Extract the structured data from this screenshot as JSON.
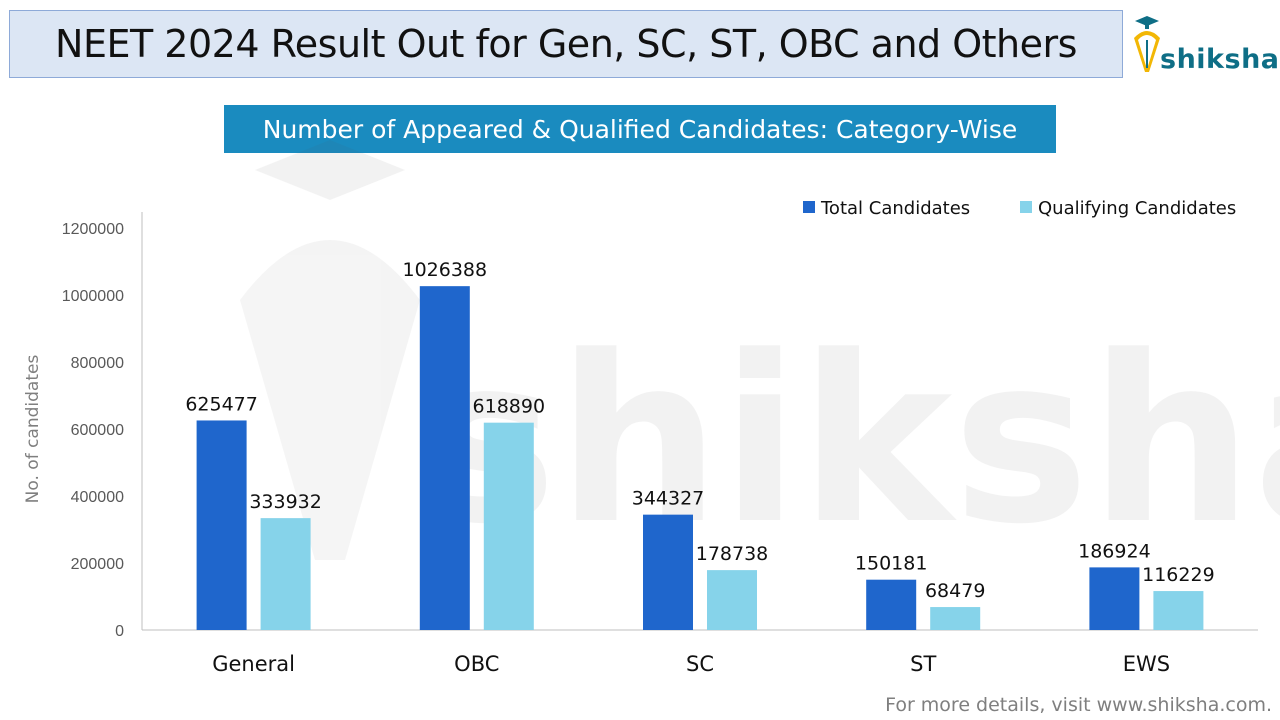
{
  "header": {
    "title": "NEET 2024 Result Out for Gen, SC, ST, OBC and Others",
    "logo_text": "shiksha",
    "watermark_text": "shiksha"
  },
  "subtitle": "Number of Appeared & Qualified Candidates: Category-Wise",
  "footer": "For more details, visit www.shiksha.com.",
  "colors": {
    "total": "#1f66cc",
    "qualifying": "#86d3ea",
    "subtitle_bg": "#1a8bbf",
    "title_bg": "#dce6f4"
  },
  "chart_data": {
    "type": "bar",
    "title": "Number of Appeared & Qualified Candidates: Category-Wise",
    "xlabel": "",
    "ylabel": "No. of candidates",
    "categories": [
      "General",
      "OBC",
      "SC",
      "ST",
      "EWS"
    ],
    "series": [
      {
        "name": "Total Candidates",
        "values": [
          625477,
          1026388,
          344327,
          150181,
          186924
        ]
      },
      {
        "name": "Qualifying Candidates",
        "values": [
          333932,
          618890,
          178738,
          68479,
          116229
        ]
      }
    ],
    "ylim": [
      0,
      1200000
    ],
    "yticks": [
      0,
      200000,
      400000,
      600000,
      800000,
      1000000,
      1200000
    ],
    "grid": false,
    "legend_position": "top-right"
  }
}
